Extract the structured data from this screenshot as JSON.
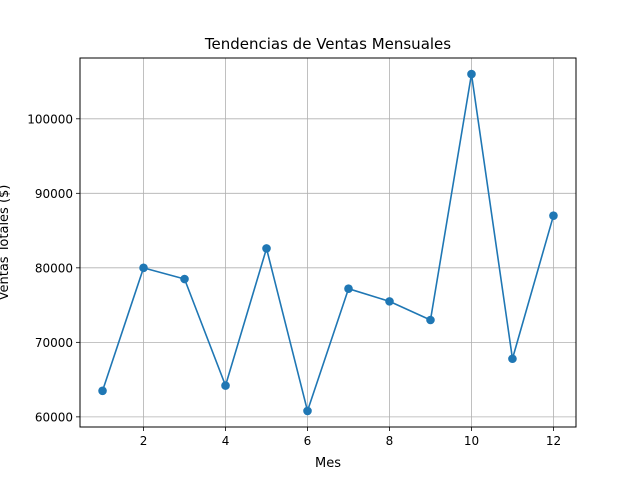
{
  "chart_data": {
    "type": "line",
    "title": "Tendencias de Ventas Mensuales",
    "xlabel": "Mes",
    "ylabel": "Ventas Totales ($)",
    "x": [
      1,
      2,
      3,
      4,
      5,
      6,
      7,
      8,
      9,
      10,
      11,
      12
    ],
    "y": [
      63500,
      80000,
      78500,
      64200,
      82600,
      60800,
      77200,
      75500,
      73000,
      106000,
      67800,
      87000
    ],
    "xlim": [
      0.45,
      12.55
    ],
    "ylim": [
      58640,
      108160
    ],
    "xticks": [
      2,
      4,
      6,
      8,
      10,
      12
    ],
    "yticks": [
      60000,
      70000,
      80000,
      90000,
      100000
    ],
    "grid": true,
    "line_color": "#1f77b4",
    "marker": "circle"
  }
}
